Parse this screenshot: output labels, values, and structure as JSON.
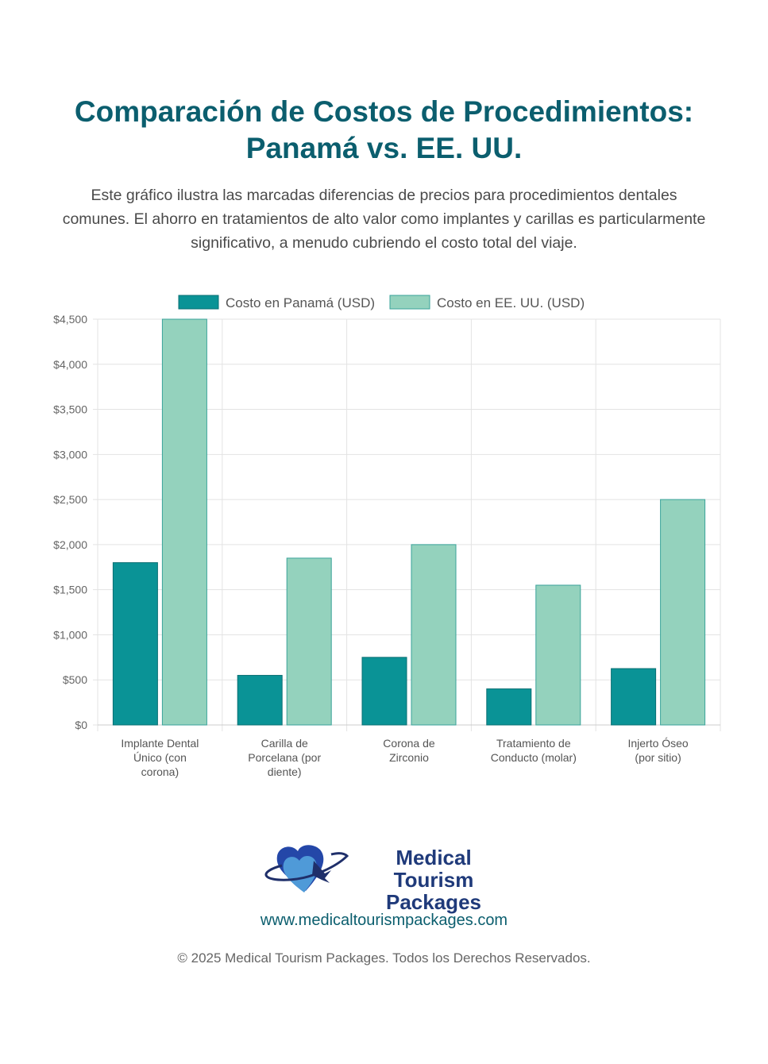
{
  "header": {
    "title_line1": "Comparación de Costos de Procedimientos:",
    "title_line2": "Panamá vs. EE. UU.",
    "description": "Este gráfico ilustra las marcadas diferencias de precios para procedimientos dentales comunes. El ahorro en tratamientos de alto valor como implantes y carillas es particularmente significativo, a menudo cubriendo el costo total del viaje."
  },
  "chart_data": {
    "type": "bar",
    "categories": [
      [
        "Implante Dental",
        "Único (con",
        "corona)"
      ],
      [
        "Carilla de",
        "Porcelana (por",
        "diente)"
      ],
      [
        "Corona de",
        "Zirconio"
      ],
      [
        "Tratamiento de",
        "Conducto (molar)"
      ],
      [
        "Injerto Óseo",
        "(por sitio)"
      ]
    ],
    "series": [
      {
        "name": "Costo en Panamá (USD)",
        "values": [
          1800,
          550,
          750,
          400,
          625
        ],
        "color": "#0a9396"
      },
      {
        "name": "Costo en EE. UU. (USD)",
        "values": [
          4500,
          1850,
          2000,
          1550,
          2500
        ],
        "color": "#94d2bd"
      }
    ],
    "ylim": [
      0,
      4500
    ],
    "yticks": [
      0,
      500,
      1000,
      1500,
      2000,
      2500,
      3000,
      3500,
      4000,
      4500
    ],
    "ytick_labels": [
      "$0",
      "$500",
      "$1,000",
      "$1,500",
      "$2,000",
      "$2,500",
      "$3,000",
      "$3,500",
      "$4,000",
      "$4,500"
    ],
    "grid": true,
    "legend": "top"
  },
  "footer": {
    "logo_line1": "Medical Tourism",
    "logo_line2": "Packages",
    "url": "www.medicaltourismpackages.com",
    "copyright": "© 2025 Medical Tourism Packages. Todos los Derechos Reservados."
  }
}
